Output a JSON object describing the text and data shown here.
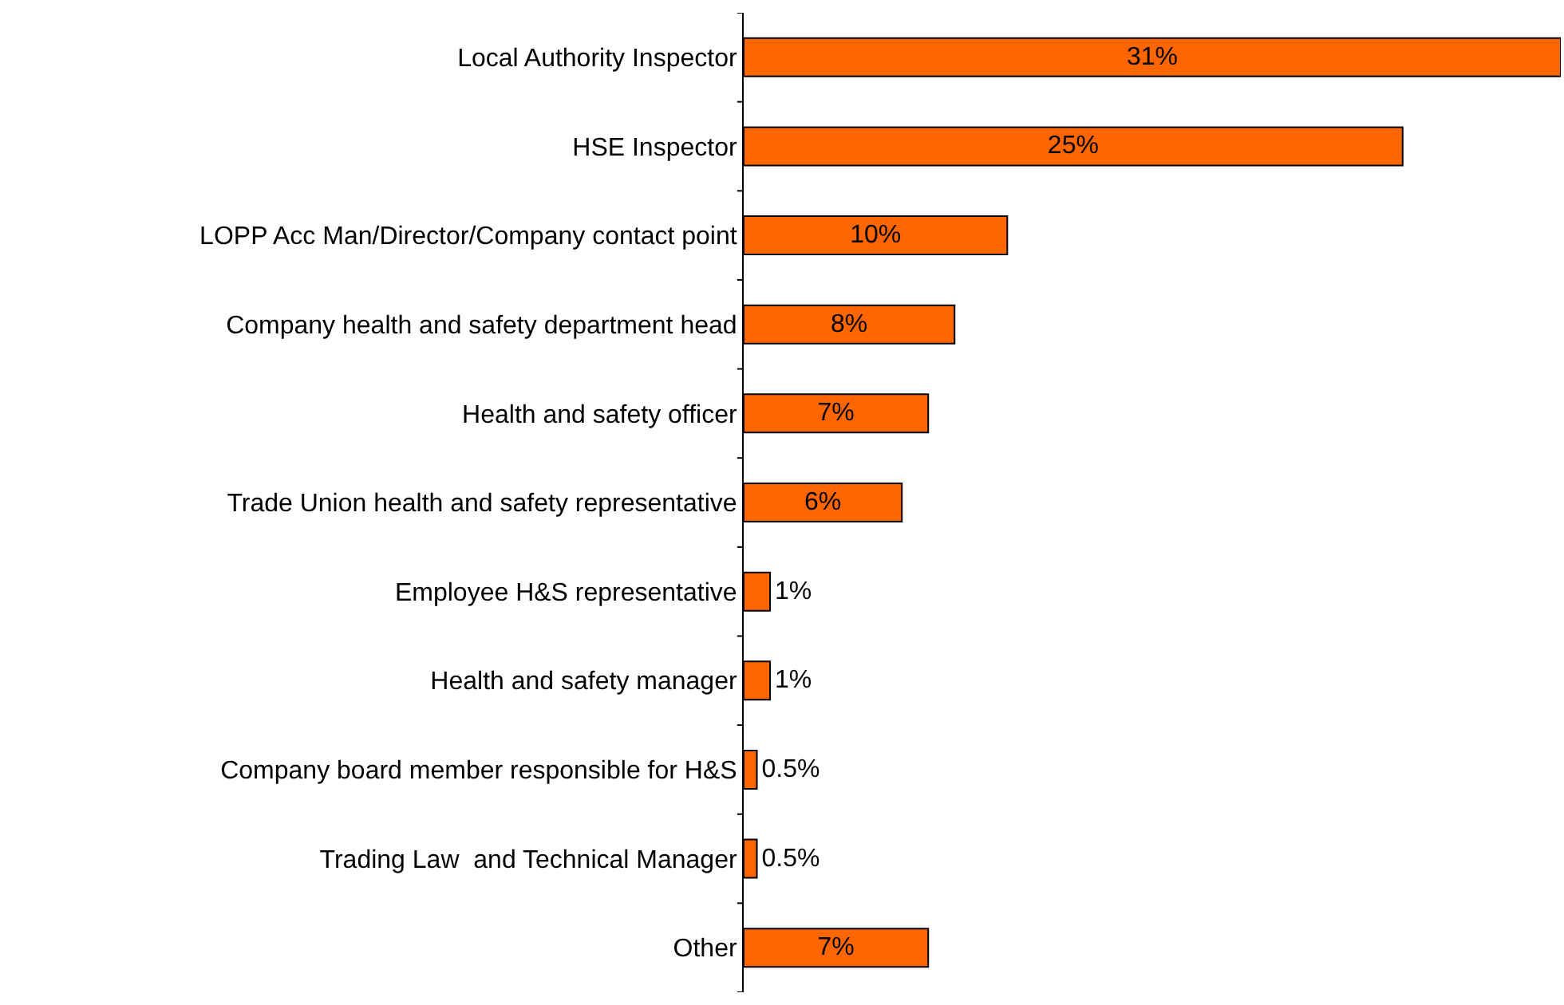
{
  "chart_data": {
    "type": "bar",
    "orientation": "horizontal",
    "categories": [
      "Local Authority Inspector",
      "HSE Inspector",
      "LOPP Acc Man/Director/Company contact point",
      "Company health and safety department head",
      "Health and safety officer",
      "Trade Union health and safety representative",
      "Employee H&S representative",
      "Health and safety manager",
      "Company board member responsible for H&S",
      "Trading Law  and Technical Manager",
      "Other"
    ],
    "values": [
      31,
      25,
      10,
      8,
      7,
      6,
      1,
      1,
      0.5,
      0.5,
      7
    ],
    "value_labels": [
      "31%",
      "25%",
      "10%",
      "8%",
      "7%",
      "6%",
      "1%",
      "1%",
      "0.5%",
      "0.5%",
      "7%"
    ],
    "color": "#ff6600"
  }
}
